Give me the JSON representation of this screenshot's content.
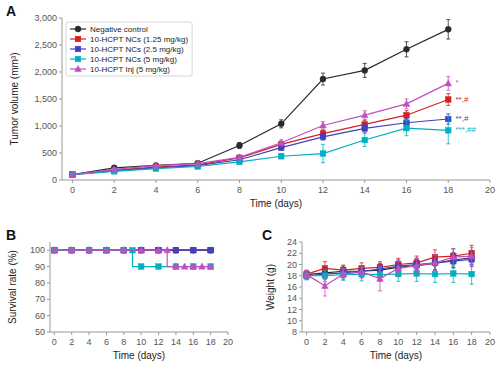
{
  "chart_data": [
    {
      "type": "line",
      "title": "A",
      "x": [
        0,
        2,
        4,
        6,
        8,
        10,
        12,
        14,
        16,
        18
      ],
      "xlabel": "Time (days)",
      "ylabel": "Tumor volume (mm³)",
      "xlim": [
        -0.5,
        20
      ],
      "ylim": [
        0,
        3000
      ],
      "xticks": [
        0,
        2,
        4,
        6,
        8,
        10,
        12,
        14,
        16,
        18,
        20
      ],
      "yticks": [
        0,
        500,
        {
          "value": 1000,
          "label": "1,000"
        },
        {
          "value": 1500,
          "label": "1,500"
        },
        {
          "value": 2000,
          "label": "2,000"
        },
        {
          "value": 2500,
          "label": "2,500"
        },
        {
          "value": 3000,
          "label": "3,000"
        }
      ],
      "grid": false,
      "legend": "upper left",
      "series": [
        {
          "name": "Negative control",
          "color": "#2a2a2a",
          "marker": "circle",
          "values": [
            100,
            225,
            270,
            310,
            640,
            1040,
            1870,
            2030,
            2420,
            2790
          ],
          "errors": [
            12,
            28,
            32,
            38,
            55,
            75,
            110,
            130,
            140,
            180
          ]
        },
        {
          "name": "10-HCPT NCs (1.25 mg/kg)",
          "color": "#d42020",
          "marker": "square",
          "values": [
            100,
            185,
            240,
            280,
            410,
            660,
            860,
            1030,
            1200,
            1490
          ],
          "errors": [
            12,
            22,
            28,
            33,
            42,
            52,
            65,
            75,
            85,
            110
          ]
        },
        {
          "name": "10-HCPT NCs (2.5 mg/kg)",
          "color": "#4040c0",
          "marker": "square",
          "values": [
            100,
            175,
            225,
            265,
            375,
            600,
            800,
            955,
            1060,
            1130
          ],
          "errors": [
            12,
            20,
            26,
            30,
            40,
            50,
            62,
            70,
            78,
            95
          ]
        },
        {
          "name": "10-HCPT NCs (5 mg/kg)",
          "color": "#00b0c0",
          "marker": "square",
          "values": [
            100,
            160,
            210,
            250,
            335,
            440,
            490,
            740,
            960,
            920
          ],
          "errors": [
            12,
            18,
            23,
            28,
            36,
            45,
            170,
            120,
            140,
            250
          ]
        },
        {
          "name": "10-HCPT Inj (5 mg/kg)",
          "color": "#c050c0",
          "marker": "triangle",
          "values": [
            100,
            195,
            265,
            305,
            420,
            690,
            1010,
            1200,
            1410,
            1790
          ],
          "errors": [
            12,
            23,
            30,
            36,
            46,
            56,
            72,
            82,
            92,
            125
          ]
        }
      ],
      "annotations": [
        {
          "x": 18.3,
          "y": 1790,
          "text": "*",
          "color": "#c050c0"
        },
        {
          "x": 18.3,
          "y": 1490,
          "text": "**,#",
          "color": "#d42020"
        },
        {
          "x": 18.3,
          "y": 1130,
          "text": "**,#",
          "color": "#4040c0"
        },
        {
          "x": 18.3,
          "y": 920,
          "text": "***,##",
          "color": "#00b0c0"
        }
      ]
    },
    {
      "type": "step",
      "title": "B",
      "xlabel": "Time (days)",
      "ylabel": "Survival rate (%)",
      "xlim": [
        -0.5,
        20
      ],
      "ylim": [
        50,
        105
      ],
      "xticks": [
        0,
        2,
        4,
        6,
        8,
        10,
        12,
        14,
        16,
        18,
        20
      ],
      "yticks": [
        50,
        60,
        70,
        80,
        90,
        100
      ],
      "grid": false,
      "series": [
        {
          "color": "#2a2a2a",
          "marker": "circle",
          "x": [
            0,
            2,
            4,
            6,
            8,
            10,
            12,
            14,
            16,
            18
          ],
          "values": [
            100,
            100,
            100,
            100,
            100,
            100,
            100,
            100,
            100,
            100
          ]
        },
        {
          "color": "#d42020",
          "marker": "square",
          "x": [
            0,
            2,
            4,
            6,
            8,
            10,
            12,
            14,
            16,
            18
          ],
          "values": [
            100,
            100,
            100,
            100,
            100,
            100,
            100,
            100,
            100,
            100
          ]
        },
        {
          "color": "#4040c0",
          "marker": "square",
          "x": [
            0,
            2,
            4,
            6,
            8,
            10,
            12,
            14,
            16,
            18
          ],
          "values": [
            100,
            100,
            100,
            100,
            100,
            100,
            100,
            100,
            100,
            100
          ]
        },
        {
          "color": "#00b0c0",
          "marker": "square",
          "x": [
            0,
            2,
            4,
            6,
            8,
            9,
            9,
            10,
            12,
            14,
            16,
            18
          ],
          "values": [
            100,
            100,
            100,
            100,
            100,
            100,
            90,
            90,
            90,
            90,
            90,
            90
          ]
        },
        {
          "color": "#c050c0",
          "marker": "triangle",
          "x": [
            0,
            2,
            4,
            6,
            8,
            10,
            12,
            13,
            13,
            14,
            15,
            15,
            16,
            17,
            17,
            18
          ],
          "values": [
            100,
            100,
            100,
            100,
            100,
            100,
            100,
            100,
            90,
            90,
            90,
            90,
            90,
            90,
            90,
            90
          ]
        }
      ]
    },
    {
      "type": "line",
      "title": "C",
      "x": [
        0,
        2,
        4,
        6,
        8,
        10,
        12,
        14,
        16,
        18
      ],
      "xlabel": "Time (days)",
      "ylabel": "Weight (g)",
      "xlim": [
        -0.5,
        20
      ],
      "ylim": [
        8,
        24
      ],
      "xticks": [
        0,
        2,
        4,
        6,
        8,
        10,
        12,
        14,
        16,
        18,
        20
      ],
      "yticks": [
        8,
        10,
        12,
        14,
        16,
        18,
        20,
        22,
        24
      ],
      "grid": false,
      "series": [
        {
          "color": "#2a2a2a",
          "marker": "circle",
          "values": [
            18.2,
            18.5,
            18.8,
            18.8,
            19.0,
            19.5,
            19.8,
            20.2,
            20.8,
            21.2
          ],
          "errors": [
            0.7,
            0.9,
            0.9,
            1.0,
            1.0,
            1.0,
            1.1,
            1.2,
            1.3,
            1.3
          ]
        },
        {
          "color": "#d42020",
          "marker": "square",
          "values": [
            18.3,
            19.3,
            19.0,
            19.3,
            19.5,
            20.0,
            20.3,
            21.3,
            21.5,
            22.0
          ],
          "errors": [
            0.7,
            1.2,
            0.9,
            1.0,
            1.0,
            1.1,
            1.2,
            1.3,
            1.3,
            1.4
          ]
        },
        {
          "color": "#4040c0",
          "marker": "square",
          "values": [
            18.0,
            18.3,
            18.5,
            18.8,
            19.2,
            19.7,
            20.0,
            20.3,
            20.6,
            20.9
          ],
          "errors": [
            0.7,
            0.9,
            0.9,
            1.0,
            1.0,
            1.1,
            1.1,
            1.2,
            1.2,
            1.3
          ]
        },
        {
          "color": "#00b0c0",
          "marker": "square",
          "values": [
            18.0,
            18.0,
            18.2,
            18.3,
            18.2,
            18.3,
            18.4,
            18.3,
            18.4,
            18.3
          ],
          "errors": [
            0.7,
            1.0,
            1.0,
            1.2,
            1.2,
            1.3,
            1.4,
            1.5,
            1.6,
            1.8
          ]
        },
        {
          "color": "#c050c0",
          "marker": "triangle",
          "values": [
            18.2,
            16.2,
            18.3,
            18.7,
            17.5,
            19.3,
            19.8,
            20.3,
            21.3,
            21.5
          ],
          "errors": [
            0.7,
            1.8,
            1.0,
            1.1,
            2.2,
            1.3,
            1.3,
            1.4,
            1.5,
            1.5
          ]
        }
      ]
    }
  ]
}
